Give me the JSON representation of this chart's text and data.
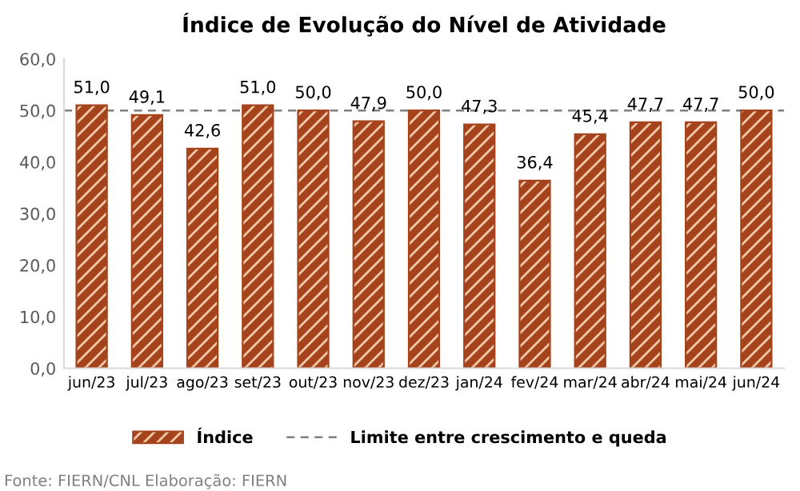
{
  "chart_data": {
    "type": "bar",
    "title": "Índice de Evolução do Nível de Atividade",
    "categories": [
      "jun/23",
      "jul/23",
      "ago/23",
      "set/23",
      "out/23",
      "nov/23",
      "dez/23",
      "jan/24",
      "fev/24",
      "mar/24",
      "abr/24",
      "mai/24",
      "jun/24"
    ],
    "series": [
      {
        "name": "Índice",
        "color": "#a5441c",
        "values": [
          51.0,
          49.1,
          42.6,
          51.0,
          50.0,
          47.9,
          50.0,
          47.3,
          36.4,
          45.4,
          47.7,
          47.7,
          50.0
        ],
        "value_labels": [
          "51,0",
          "49,1",
          "42,6",
          "51,0",
          "50,0",
          "47,9",
          "50,0",
          "47,3",
          "36,4",
          "45,4",
          "47,7",
          "47,7",
          "50,0"
        ]
      }
    ],
    "ylim": [
      0,
      60
    ],
    "yticks": [
      {
        "value": 0,
        "label": "0,0"
      },
      {
        "value": 10,
        "label": "10,0"
      },
      {
        "value": 20,
        "label": "20,0"
      },
      {
        "value": 30,
        "label": "30,0"
      },
      {
        "value": 40,
        "label": "40,0"
      },
      {
        "value": 50,
        "label": "50,0"
      },
      {
        "value": 60,
        "label": "60,0"
      }
    ],
    "ref_lines": [
      {
        "axis": "y",
        "value": 50,
        "label": "Limite entre crescimento e queda",
        "color": "#7f7f7f",
        "line_style": "dashed"
      }
    ],
    "legend": "bottom",
    "grid": false,
    "annotations": [
      "Fonte: FIERN/CNL Elaboração: FIERN"
    ]
  }
}
